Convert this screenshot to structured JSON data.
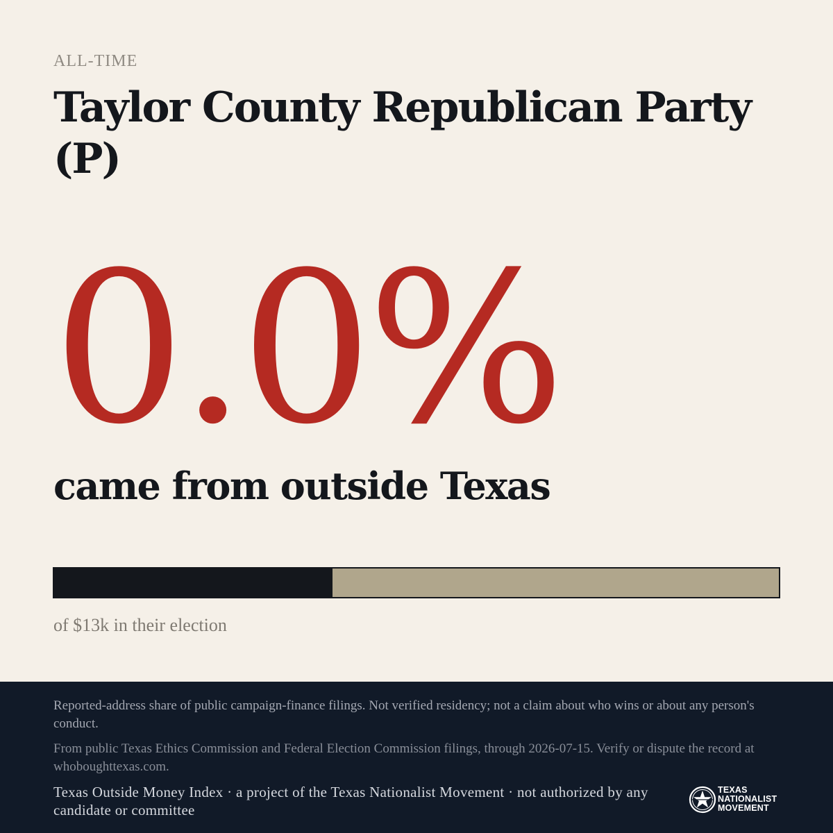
{
  "header": {
    "eyebrow": "ALL-TIME",
    "title": "Taylor County Republican Party (P)"
  },
  "headline": {
    "percent": "0.0%",
    "subline": "came from outside Texas"
  },
  "bar": {
    "filled_fraction": 0.384,
    "caption": "of $13k in their election"
  },
  "colors": {
    "background": "#f5f0e8",
    "accent_red": "#b52a22",
    "ink": "#14171c",
    "bar_remainder": "#b0a68c",
    "footer_bg": "#111a28"
  },
  "footer": {
    "disclaimer": "Reported-address share of public campaign-finance filings. Not verified residency; not a claim about who wins or about any person's conduct.",
    "source": "From public Texas Ethics Commission and Federal Election Commission filings, through 2026-07-15. Verify or dispute the record at whoboughttexas.com.",
    "credit": "Texas Outside Money Index · a project of the Texas Nationalist Movement · not authorized by any candidate or committee"
  },
  "logo": {
    "icon": "star-seal-icon",
    "line1": "TEXAS",
    "line2": "NATIONALIST",
    "line3": "MOVEMENT"
  }
}
